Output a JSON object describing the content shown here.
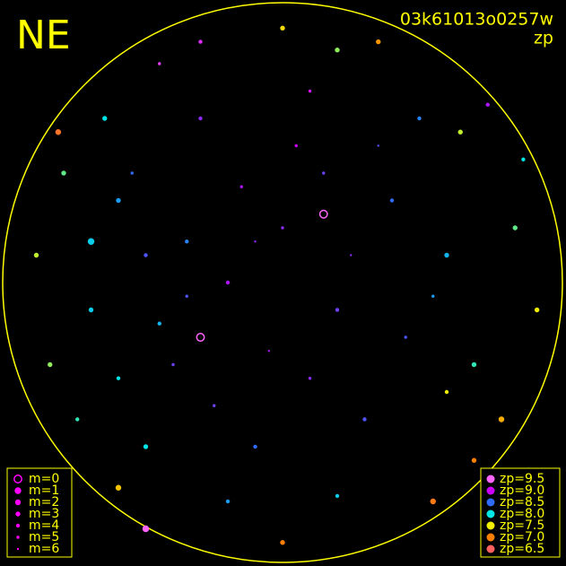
{
  "chart_data": {
    "type": "scatter",
    "title": "NE",
    "frame_id": "03k61013o0257w",
    "subtitle": "zp",
    "xlim": [
      -1,
      1
    ],
    "ylim": [
      -1,
      1
    ],
    "rim_color": "#ffff00",
    "m_legend": [
      {
        "value": 0,
        "label": "m=0"
      },
      {
        "value": 1,
        "label": "m=1"
      },
      {
        "value": 2,
        "label": "m=2"
      },
      {
        "value": 3,
        "label": "m=3"
      },
      {
        "value": 4,
        "label": "m=4"
      },
      {
        "value": 5,
        "label": "m=5"
      },
      {
        "value": 6,
        "label": "m=6"
      }
    ],
    "m_legend_color": "#ff00ff",
    "zp_legend": [
      {
        "value": 9.5,
        "label": "zp=9.5",
        "color": "#ff66ff"
      },
      {
        "value": 9.0,
        "label": "zp=9.0",
        "color": "#cc00ff"
      },
      {
        "value": 8.5,
        "label": "zp=8.5",
        "color": "#2f6bff"
      },
      {
        "value": 8.0,
        "label": "zp=8.0",
        "color": "#00e5e5"
      },
      {
        "value": 7.5,
        "label": "zp=7.5",
        "color": "#f0f000"
      },
      {
        "value": 7.0,
        "label": "zp=7.0",
        "color": "#ff8000"
      },
      {
        "value": 6.5,
        "label": "zp=6.5",
        "color": "#ff6060"
      }
    ],
    "points": {
      "x": [
        -0.6,
        -0.5,
        -0.7,
        -0.4,
        -0.2,
        0.0,
        0.2,
        0.4,
        0.6,
        0.7,
        0.3,
        -0.1,
        -0.5,
        -0.3,
        0.1,
        0.5,
        -0.8,
        -0.85,
        0.85,
        0.8,
        0.0,
        -0.3,
        0.35,
        -0.6,
        0.55,
        0.0,
        -0.9,
        0.93,
        -0.15,
        0.15,
        -0.35,
        -0.45,
        0.25,
        -0.05,
        0.45,
        -0.25,
        0.1,
        -0.65,
        0.65,
        -0.75,
        0.7,
        -0.2,
        0.2,
        -0.55,
        0.55,
        -0.35,
        0.05,
        -0.1,
        0.35,
        -0.6,
        -0.82,
        0.75,
        -0.45,
        0.2,
        -0.7,
        -0.3,
        0.15,
        -0.5,
        0.6,
        0.88
      ],
      "y": [
        0.3,
        0.1,
        -0.1,
        -0.3,
        0.0,
        0.2,
        -0.1,
        0.3,
        0.1,
        -0.3,
        -0.5,
        -0.6,
        -0.6,
        0.6,
        0.7,
        0.6,
        0.4,
        -0.3,
        0.2,
        -0.5,
        0.93,
        0.88,
        0.88,
        -0.75,
        -0.8,
        -0.95,
        0.1,
        -0.1,
        0.35,
        0.4,
        0.15,
        -0.15,
        0.1,
        -0.25,
        -0.2,
        -0.45,
        -0.35,
        0.6,
        0.55,
        -0.5,
        -0.65,
        -0.8,
        -0.78,
        0.4,
        -0.05,
        -0.05,
        0.5,
        0.15,
        0.5,
        -0.35,
        0.55,
        0.65,
        0.8,
        0.85,
        0.15,
        -0.2,
        0.25,
        -0.9,
        -0.4,
        0.45
      ],
      "zp": [
        8.3,
        8.6,
        8.1,
        8.7,
        8.9,
        8.8,
        8.7,
        8.5,
        8.2,
        7.9,
        8.6,
        8.5,
        8.0,
        8.8,
        9.1,
        8.4,
        7.8,
        7.7,
        7.8,
        7.2,
        7.4,
        9.2,
        7.1,
        7.3,
        6.9,
        7.0,
        7.6,
        7.5,
        8.9,
        8.7,
        8.4,
        8.2,
        8.8,
        8.9,
        8.6,
        8.7,
        8.8,
        8.0,
        7.6,
        7.9,
        7.0,
        8.3,
        8.1,
        8.5,
        8.3,
        8.6,
        9.0,
        8.8,
        8.6,
        8.0,
        6.8,
        8.9,
        9.3,
        7.7,
        8.1,
        9.6,
        9.6,
        9.6,
        7.5,
        8.0
      ],
      "m": [
        3,
        4,
        3,
        5,
        4,
        5,
        4,
        4,
        3,
        3,
        4,
        4,
        3,
        4,
        5,
        4,
        3,
        3,
        3,
        2,
        3,
        4,
        3,
        2,
        2,
        3,
        3,
        3,
        5,
        5,
        4,
        4,
        6,
        6,
        5,
        5,
        5,
        3,
        3,
        4,
        3,
        4,
        4,
        5,
        5,
        5,
        5,
        6,
        6,
        4,
        2,
        4,
        5,
        3,
        1,
        0,
        0,
        1,
        4,
        4
      ]
    }
  }
}
